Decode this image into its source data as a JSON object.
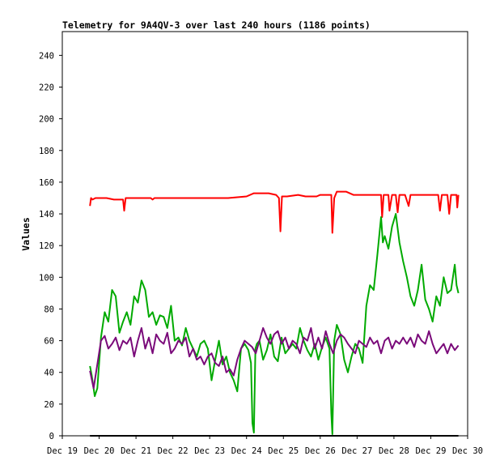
{
  "chart_data": {
    "type": "line",
    "title": "Telemetry for 9A4QV-3 over last 240 hours (1186 points)",
    "xlabel": "",
    "ylabel": "Values",
    "ylim": [
      0,
      255
    ],
    "yticks": [
      0,
      20,
      40,
      60,
      80,
      100,
      120,
      140,
      160,
      180,
      200,
      220,
      240
    ],
    "xlim": [
      "Dec 19",
      "Dec 30"
    ],
    "xticks": [
      "Dec 19",
      "Dec 20",
      "Dec 21",
      "Dec 22",
      "Dec 23",
      "Dec 24",
      "Dec 25",
      "Dec 26",
      "Dec 27",
      "Dec 28",
      "Dec 29",
      "Dec 30"
    ],
    "grid": false,
    "legend": "none",
    "series": [
      {
        "color": "#ff0000",
        "x": [
          19.75,
          19.78,
          19.82,
          19.9,
          20.0,
          20.2,
          20.4,
          20.65,
          20.68,
          20.72,
          21.0,
          21.4,
          21.45,
          21.5,
          22.0,
          22.5,
          23.0,
          23.5,
          24.0,
          24.2,
          24.4,
          24.6,
          24.8,
          24.88,
          24.92,
          24.96,
          25.1,
          25.4,
          25.6,
          25.9,
          26.0,
          26.3,
          26.33,
          26.38,
          26.45,
          26.7,
          26.9,
          27.2,
          27.5,
          27.65,
          27.68,
          27.72,
          27.75,
          27.85,
          27.88,
          27.95,
          28.05,
          28.1,
          28.15,
          28.3,
          28.4,
          28.45,
          28.7,
          28.9,
          29.2,
          29.25,
          29.3,
          29.45,
          29.5,
          29.55,
          29.7,
          29.72,
          29.75
        ],
        "y": [
          145,
          150,
          149,
          150,
          150,
          150,
          149,
          149,
          142,
          150,
          150,
          150,
          149,
          150,
          150,
          150,
          150,
          150,
          151,
          153,
          153,
          153,
          152,
          150,
          129,
          151,
          151,
          152,
          151,
          151,
          152,
          152,
          128,
          150,
          154,
          154,
          152,
          152,
          152,
          152,
          138,
          152,
          152,
          152,
          142,
          152,
          152,
          141,
          152,
          152,
          145,
          152,
          152,
          152,
          152,
          142,
          152,
          152,
          140,
          152,
          152,
          144,
          152
        ]
      },
      {
        "color": "#00aa00",
        "x": [
          19.75,
          19.8,
          19.88,
          19.95,
          20.05,
          20.15,
          20.25,
          20.35,
          20.45,
          20.55,
          20.65,
          20.75,
          20.85,
          20.95,
          21.05,
          21.15,
          21.25,
          21.35,
          21.45,
          21.55,
          21.65,
          21.75,
          21.85,
          21.95,
          22.05,
          22.15,
          22.25,
          22.35,
          22.45,
          22.55,
          22.65,
          22.75,
          22.85,
          22.95,
          23.05,
          23.15,
          23.25,
          23.35,
          23.45,
          23.55,
          23.65,
          23.75,
          23.85,
          23.95,
          24.05,
          24.12,
          24.16,
          24.2,
          24.24,
          24.28,
          24.35,
          24.45,
          24.55,
          24.65,
          24.75,
          24.85,
          24.95,
          25.05,
          25.15,
          25.25,
          25.35,
          25.45,
          25.55,
          25.65,
          25.75,
          25.85,
          25.95,
          26.05,
          26.15,
          26.25,
          26.3,
          26.33,
          26.38,
          26.45,
          26.55,
          26.65,
          26.75,
          26.85,
          26.95,
          27.05,
          27.15,
          27.25,
          27.35,
          27.45,
          27.55,
          27.65,
          27.7,
          27.75,
          27.85,
          27.95,
          28.05,
          28.15,
          28.25,
          28.35,
          28.45,
          28.55,
          28.65,
          28.75,
          28.85,
          28.95,
          29.05,
          29.15,
          29.25,
          29.35,
          29.45,
          29.55,
          29.65,
          29.7,
          29.75
        ],
        "y": [
          44,
          38,
          25,
          30,
          62,
          78,
          72,
          92,
          88,
          65,
          72,
          78,
          70,
          88,
          84,
          98,
          92,
          75,
          78,
          70,
          76,
          75,
          68,
          82,
          60,
          62,
          57,
          68,
          60,
          55,
          50,
          58,
          60,
          55,
          35,
          48,
          60,
          45,
          50,
          40,
          35,
          28,
          55,
          58,
          54,
          46,
          8,
          2,
          55,
          58,
          60,
          48,
          54,
          64,
          50,
          47,
          62,
          52,
          55,
          58,
          55,
          68,
          60,
          54,
          50,
          58,
          48,
          56,
          62,
          55,
          14,
          1,
          60,
          70,
          64,
          48,
          40,
          50,
          58,
          55,
          46,
          82,
          95,
          92,
          114,
          138,
          122,
          126,
          118,
          132,
          140,
          122,
          110,
          100,
          88,
          82,
          92,
          108,
          86,
          80,
          72,
          88,
          82,
          100,
          90,
          92,
          108,
          95,
          90
        ]
      },
      {
        "color": "#7a0a7a",
        "x": [
          19.75,
          19.85,
          19.95,
          20.05,
          20.15,
          20.25,
          20.35,
          20.45,
          20.55,
          20.65,
          20.75,
          20.85,
          20.95,
          21.05,
          21.15,
          21.25,
          21.35,
          21.45,
          21.55,
          21.65,
          21.75,
          21.85,
          21.95,
          22.05,
          22.15,
          22.25,
          22.35,
          22.45,
          22.55,
          22.65,
          22.75,
          22.85,
          22.95,
          23.05,
          23.15,
          23.25,
          23.35,
          23.45,
          23.55,
          23.65,
          23.75,
          23.85,
          23.95,
          24.05,
          24.15,
          24.25,
          24.35,
          24.45,
          24.55,
          24.65,
          24.75,
          24.85,
          24.95,
          25.05,
          25.15,
          25.25,
          25.35,
          25.45,
          25.55,
          25.65,
          25.75,
          25.85,
          25.95,
          26.05,
          26.15,
          26.25,
          26.35,
          26.45,
          26.55,
          26.65,
          26.75,
          26.85,
          26.95,
          27.05,
          27.15,
          27.25,
          27.35,
          27.45,
          27.55,
          27.65,
          27.75,
          27.85,
          27.95,
          28.05,
          28.15,
          28.25,
          28.35,
          28.45,
          28.55,
          28.65,
          28.75,
          28.85,
          28.95,
          29.05,
          29.15,
          29.25,
          29.35,
          29.45,
          29.55,
          29.65,
          29.75
        ],
        "y": [
          41,
          30,
          45,
          60,
          63,
          55,
          58,
          62,
          54,
          60,
          58,
          62,
          50,
          60,
          68,
          55,
          62,
          52,
          64,
          60,
          58,
          65,
          52,
          55,
          60,
          58,
          62,
          50,
          55,
          48,
          50,
          45,
          50,
          52,
          46,
          44,
          50,
          40,
          42,
          38,
          48,
          55,
          60,
          58,
          56,
          52,
          60,
          68,
          62,
          58,
          64,
          66,
          58,
          62,
          55,
          60,
          58,
          52,
          62,
          60,
          68,
          55,
          62,
          55,
          66,
          58,
          52,
          60,
          64,
          62,
          58,
          55,
          52,
          60,
          58,
          56,
          62,
          58,
          60,
          52,
          60,
          62,
          55,
          60,
          58,
          62,
          58,
          62,
          56,
          64,
          60,
          58,
          66,
          58,
          52,
          55,
          58,
          52,
          58,
          54,
          57
        ]
      },
      {
        "color": "#000000",
        "x": [
          19.75,
          29.75
        ],
        "y": [
          0,
          0
        ]
      }
    ]
  }
}
